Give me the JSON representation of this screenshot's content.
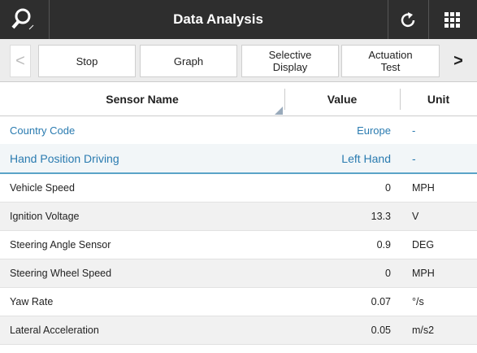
{
  "header": {
    "title": "Data Analysis"
  },
  "toolbar": {
    "prev": "<",
    "buttons": [
      "Stop",
      "Graph",
      "Selective Display",
      "Actuation Test"
    ],
    "next": ">"
  },
  "table": {
    "columns": [
      "Sensor Name",
      "Value",
      "Unit"
    ],
    "info_rows": [
      [
        "Country Code",
        "Europe",
        "-"
      ],
      [
        "Hand Position Driving",
        "Left Hand",
        "-"
      ]
    ],
    "rows": [
      [
        "Vehicle Speed",
        "0",
        "MPH"
      ],
      [
        "Ignition Voltage",
        "13.3",
        "V"
      ],
      [
        "Steering Angle Sensor",
        "0.9",
        "DEG"
      ],
      [
        "Steering Wheel Speed",
        "0",
        "MPH"
      ],
      [
        "Yaw Rate",
        "0.07",
        "°/s"
      ],
      [
        "Lateral Acceleration",
        "0.05",
        "m/s2"
      ]
    ]
  }
}
